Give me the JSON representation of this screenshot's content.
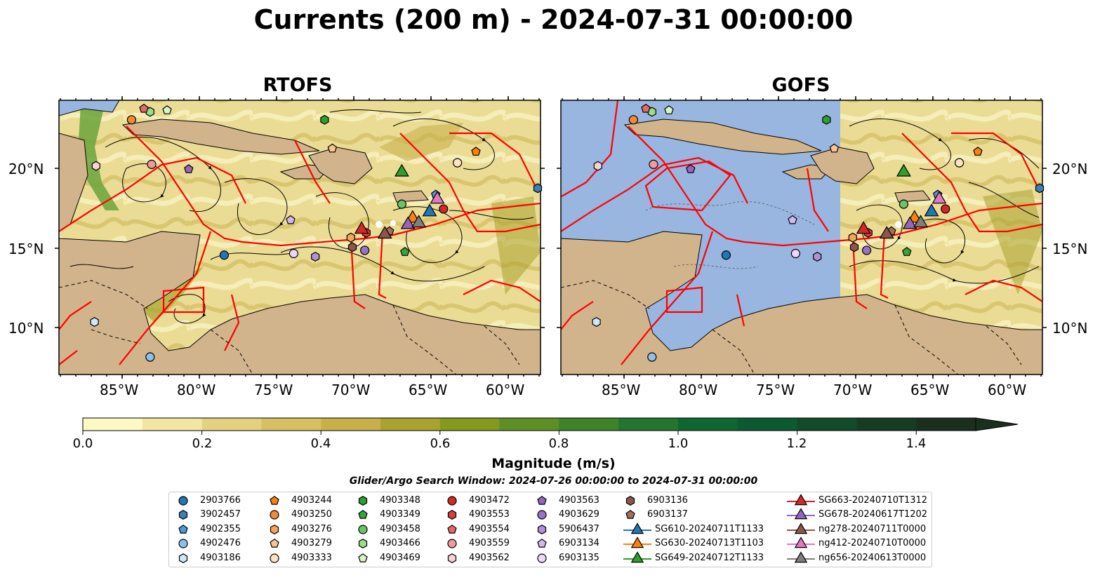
{
  "title": "Currents (200 m) - 2024-07-31 00:00:00",
  "panels": [
    {
      "title": "RTOFS",
      "model_coverage": "full"
    },
    {
      "title": "GOFS",
      "model_coverage": "east of 71°W"
    }
  ],
  "map": {
    "lon_ticks": [
      "85°W",
      "80°W",
      "75°W",
      "70°W",
      "65°W",
      "60°W"
    ],
    "lat_ticks": [
      "20°N",
      "15°N",
      "10°N"
    ],
    "land_color": "#d2b48c",
    "ocean_color": "#98b6e0",
    "boundary_color": "#ff0000"
  },
  "colorbar": {
    "title": "Magnitude (m/s)",
    "ticks": [
      "0.0",
      "0.2",
      "0.4",
      "0.6",
      "0.8",
      "1.0",
      "1.2",
      "1.4"
    ],
    "colors": [
      "#fdf9c7",
      "#f2e6a2",
      "#e4d17f",
      "#d7c064",
      "#c7b04c",
      "#a9a230",
      "#85981f",
      "#5e8e24",
      "#3f8227",
      "#237530",
      "#0e6732",
      "#0b5a30",
      "#124a2a",
      "#173c24",
      "#1b2f1e",
      "#1d251a"
    ]
  },
  "search_window": "Glider/Argo Search Window: 2024-07-26 00:00:00 to 2024-07-31 00:00:00",
  "legend": [
    [
      {
        "label": "2903766",
        "marker": "circle",
        "color": "#1f77b4"
      },
      {
        "label": "3902457",
        "marker": "hexagon",
        "color": "#3a7fb8"
      },
      {
        "label": "4902355",
        "marker": "pentagon",
        "color": "#4c9ad6"
      },
      {
        "label": "4902476",
        "marker": "circle",
        "color": "#8ec1ea"
      },
      {
        "label": "4903186",
        "marker": "hexagon",
        "color": "#cfe8f8"
      }
    ],
    [
      {
        "label": "4903244",
        "marker": "pentagon",
        "color": "#ff7f0e"
      },
      {
        "label": "4903250",
        "marker": "circle",
        "color": "#f28a36"
      },
      {
        "label": "4903276",
        "marker": "hexagon",
        "color": "#f5a55a"
      },
      {
        "label": "4903279",
        "marker": "pentagon",
        "color": "#fbc48e"
      },
      {
        "label": "4903333",
        "marker": "circle",
        "color": "#fde3c4"
      }
    ],
    [
      {
        "label": "4903348",
        "marker": "hexagon",
        "color": "#2ca02c"
      },
      {
        "label": "4903349",
        "marker": "pentagon",
        "color": "#37a43a"
      },
      {
        "label": "4903458",
        "marker": "circle",
        "color": "#67c567"
      },
      {
        "label": "4903466",
        "marker": "hexagon",
        "color": "#98df8a"
      },
      {
        "label": "4903469",
        "marker": "pentagon",
        "color": "#d5f5c9"
      }
    ],
    [
      {
        "label": "4903472",
        "marker": "circle",
        "color": "#d62728"
      },
      {
        "label": "4903553",
        "marker": "hexagon",
        "color": "#dc3d3d"
      },
      {
        "label": "4903554",
        "marker": "pentagon",
        "color": "#e46a6a"
      },
      {
        "label": "4903559",
        "marker": "circle",
        "color": "#f09a9a"
      },
      {
        "label": "4903562",
        "marker": "hexagon",
        "color": "#fbd2d2"
      }
    ],
    [
      {
        "label": "4903563",
        "marker": "pentagon",
        "color": "#9467bd"
      },
      {
        "label": "4903629",
        "marker": "circle",
        "color": "#9a72c4"
      },
      {
        "label": "5906437",
        "marker": "hexagon",
        "color": "#b48fd8"
      },
      {
        "label": "6903134",
        "marker": "pentagon",
        "color": "#d4b7f0"
      },
      {
        "label": "6903135",
        "marker": "circle",
        "color": "#ecd6fb"
      }
    ],
    [
      {
        "label": "6903136",
        "marker": "hexagon",
        "color": "#8c564b"
      },
      {
        "label": "6903137",
        "marker": "pentagon",
        "color": "#a0705f"
      },
      {
        "label": "SG610-20240711T1133",
        "marker": "triangle",
        "color": "#1f77b4"
      },
      {
        "label": "SG630-20240713T1103",
        "marker": "triangle",
        "color": "#ff7f0e"
      },
      {
        "label": "SG649-20240712T1133",
        "marker": "triangle",
        "color": "#2ca02c"
      }
    ],
    [
      {
        "label": "SG663-20240710T1312",
        "marker": "triangle",
        "color": "#d62728"
      },
      {
        "label": "SG678-20240617T1202",
        "marker": "triangle",
        "color": "#9467bd"
      },
      {
        "label": "ng278-20240711T0000",
        "marker": "triangle",
        "color": "#8c564b"
      },
      {
        "label": "ng412-20240710T0000",
        "marker": "triangle",
        "color": "#e377c2"
      },
      {
        "label": "ng656-20240613T0000",
        "marker": "triangle",
        "color": "#7f7f7f"
      }
    ]
  ],
  "argo_positions": [
    {
      "label": "2903766",
      "lon": -78.5,
      "lat": 14.5
    },
    {
      "label": "3902457",
      "lon": -58.2,
      "lat": 18.7
    },
    {
      "label": "4902355",
      "lon": -64.8,
      "lat": 18.3
    },
    {
      "label": "4902476",
      "lon": -83.3,
      "lat": 8.1
    },
    {
      "label": "4903186",
      "lon": -86.9,
      "lat": 10.3
    },
    {
      "label": "4903244",
      "lon": -62.2,
      "lat": 21.0
    },
    {
      "label": "4903250",
      "lon": -84.5,
      "lat": 23.0
    },
    {
      "label": "4903276",
      "lon": -70.3,
      "lat": 15.6
    },
    {
      "label": "4903279",
      "lon": -71.5,
      "lat": 21.2
    },
    {
      "label": "4903333",
      "lon": -63.4,
      "lat": 20.3
    },
    {
      "label": "4903348",
      "lon": -72.0,
      "lat": 23.0
    },
    {
      "label": "4903349",
      "lon": -66.8,
      "lat": 14.7
    },
    {
      "label": "4903458",
      "lon": -67.0,
      "lat": 17.7
    },
    {
      "label": "4903466",
      "lon": -83.3,
      "lat": 23.5
    },
    {
      "label": "4903469",
      "lon": -82.2,
      "lat": 23.6
    },
    {
      "label": "4903472",
      "lon": -64.3,
      "lat": 17.4
    },
    {
      "label": "4903553",
      "lon": -69.3,
      "lat": 15.9
    },
    {
      "label": "4903554",
      "lon": -83.7,
      "lat": 23.7
    },
    {
      "label": "4903559",
      "lon": -83.2,
      "lat": 20.2
    },
    {
      "label": "4903562",
      "lon": -86.8,
      "lat": 20.1
    },
    {
      "label": "4903563",
      "lon": -80.8,
      "lat": 19.9
    },
    {
      "label": "4903629",
      "lon": -69.4,
      "lat": 14.8
    },
    {
      "label": "5906437",
      "lon": -72.6,
      "lat": 14.4
    },
    {
      "label": "6903134",
      "lon": -74.2,
      "lat": 16.7
    },
    {
      "label": "6903135",
      "lon": -74.0,
      "lat": 14.6
    },
    {
      "label": "6903136",
      "lon": -70.2,
      "lat": 15.0
    },
    {
      "label": "6903137",
      "lon": -67.8,
      "lat": 16.0
    }
  ],
  "glider_positions": [
    {
      "label": "SG610-20240711T1133",
      "lon": -65.2,
      "lat": 17.3
    },
    {
      "label": "SG630-20240713T1103",
      "lon": -66.3,
      "lat": 16.9
    },
    {
      "label": "SG649-20240712T1133",
      "lon": -67.0,
      "lat": 19.8
    },
    {
      "label": "SG663-20240710T1312",
      "lon": -69.6,
      "lat": 16.2
    },
    {
      "label": "SG678-20240617T1202",
      "lon": -66.6,
      "lat": 16.5
    },
    {
      "label": "ng278-20240711T0000",
      "lon": -68.1,
      "lat": 15.9
    },
    {
      "label": "ng412-20240710T0000",
      "lon": -64.7,
      "lat": 18.1
    },
    {
      "label": "ng656-20240613T0000",
      "lon": -65.9,
      "lat": 16.6
    }
  ]
}
